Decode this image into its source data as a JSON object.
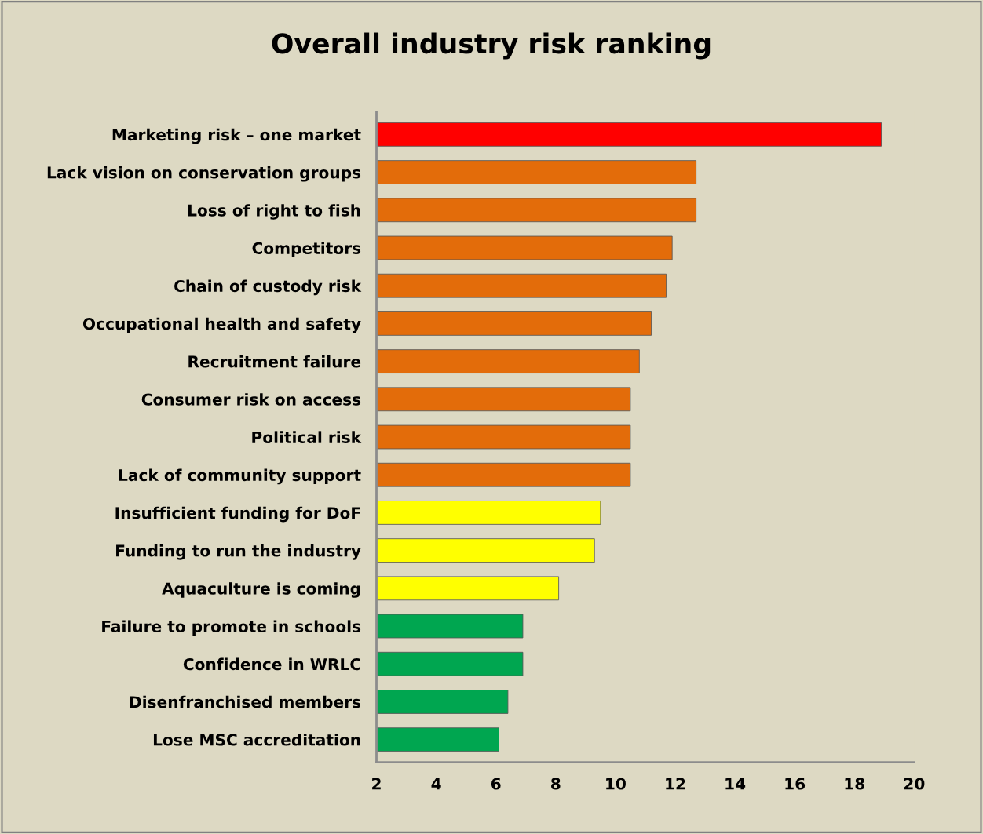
{
  "chart_data": {
    "type": "bar",
    "orientation": "horizontal",
    "title": "Overall industry risk ranking",
    "categories": [
      "Marketing risk – one market",
      "Lack vision on conservation groups",
      "Loss of right to fish",
      "Competitors",
      "Chain of custody risk",
      "Occupational health and safety",
      "Recruitment failure",
      "Consumer risk on access",
      "Political risk",
      "Lack of community support",
      "Insufficient funding for DoF",
      "Funding to run the industry",
      "Aquaculture is coming",
      "Failure to promote in schools",
      "Confidence in WRLC",
      "Disenfranchised members",
      "Lose MSC accreditation"
    ],
    "values": [
      18.9,
      12.7,
      12.7,
      11.9,
      11.7,
      11.2,
      10.8,
      10.5,
      10.5,
      10.5,
      9.5,
      9.3,
      8.1,
      6.9,
      6.9,
      6.4,
      6.1
    ],
    "colors": [
      "#ff0000",
      "#e36c0a",
      "#e36c0a",
      "#e36c0a",
      "#e36c0a",
      "#e36c0a",
      "#e36c0a",
      "#e36c0a",
      "#e36c0a",
      "#e36c0a",
      "#ffff00",
      "#ffff00",
      "#ffff00",
      "#00a650",
      "#00a650",
      "#00a650",
      "#00a650"
    ],
    "xlim": [
      2,
      20
    ],
    "xticks": [
      2,
      4,
      6,
      8,
      10,
      12,
      14,
      16,
      18,
      20
    ],
    "grid": false,
    "legend": false
  }
}
